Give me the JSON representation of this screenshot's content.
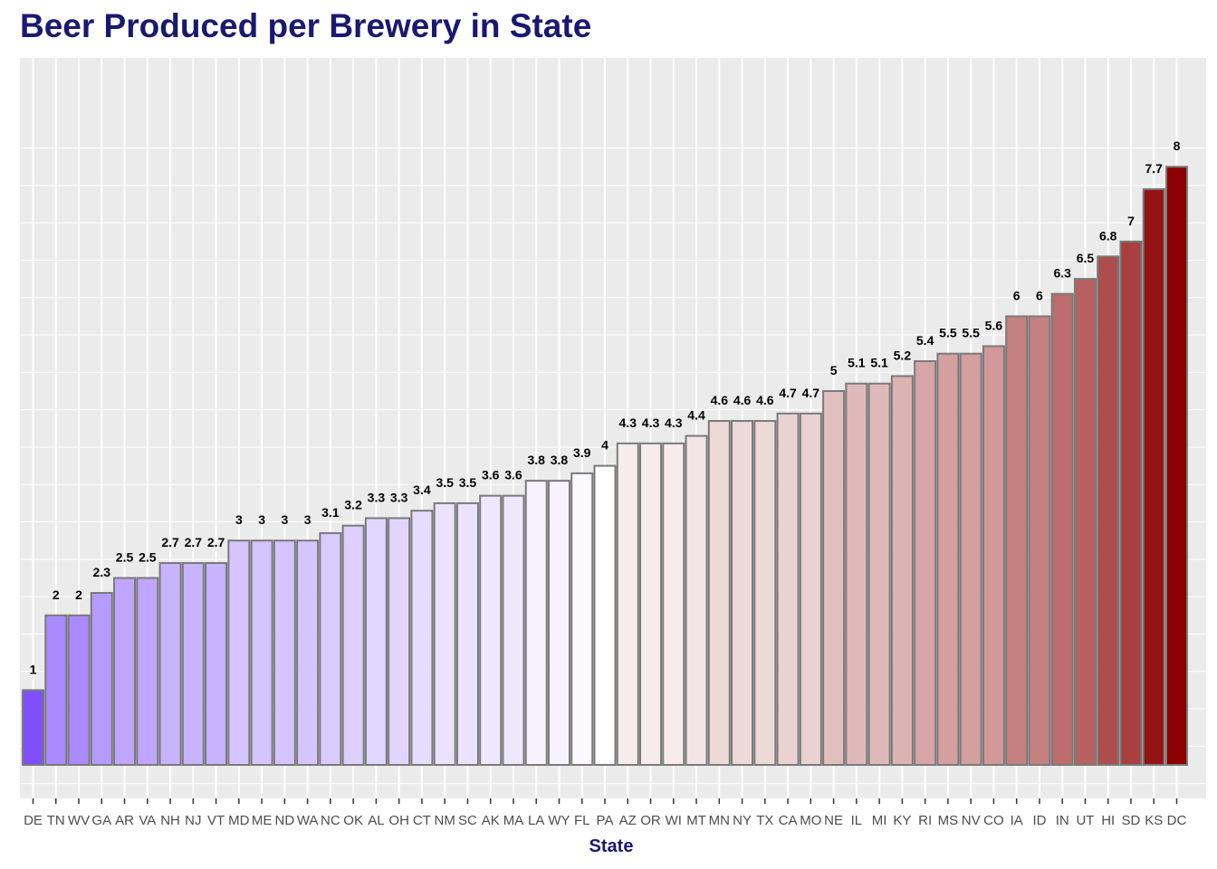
{
  "chart_data": {
    "type": "bar",
    "title": "Beer Produced per Brewery in State",
    "xlabel": "State",
    "ylabel": "",
    "ylim": [
      0,
      8.4
    ],
    "grid": true,
    "categories": [
      "DE",
      "TN",
      "WV",
      "GA",
      "AR",
      "VA",
      "NH",
      "NJ",
      "VT",
      "MD",
      "ME",
      "ND",
      "WA",
      "NC",
      "OK",
      "AL",
      "OH",
      "CT",
      "NM",
      "SC",
      "AK",
      "MA",
      "LA",
      "WY",
      "FL",
      "PA",
      "AZ",
      "OR",
      "WI",
      "MT",
      "MN",
      "NY",
      "TX",
      "CA",
      "MO",
      "NE",
      "IL",
      "MI",
      "KY",
      "RI",
      "MS",
      "NV",
      "CO",
      "IA",
      "ID",
      "IN",
      "UT",
      "HI",
      "SD",
      "KS",
      "DC"
    ],
    "values": [
      1,
      2,
      2,
      2.3,
      2.5,
      2.5,
      2.7,
      2.7,
      2.7,
      3,
      3,
      3,
      3,
      3.1,
      3.2,
      3.3,
      3.3,
      3.4,
      3.5,
      3.5,
      3.6,
      3.6,
      3.8,
      3.8,
      3.9,
      4,
      4.3,
      4.3,
      4.3,
      4.4,
      4.6,
      4.6,
      4.6,
      4.7,
      4.7,
      5,
      5.1,
      5.1,
      5.2,
      5.4,
      5.5,
      5.5,
      5.6,
      6,
      6,
      6.3,
      6.5,
      6.8,
      7,
      7.7,
      8
    ],
    "value_labels": [
      "1",
      "2",
      "2",
      "2.3",
      "2.5",
      "2.5",
      "2.7",
      "2.7",
      "2.7",
      "3",
      "3",
      "3",
      "3",
      "3.1",
      "3.2",
      "3.3",
      "3.3",
      "3.4",
      "3.5",
      "3.5",
      "3.6",
      "3.6",
      "3.8",
      "3.8",
      "3.9",
      "4",
      "4.3",
      "4.3",
      "4.3",
      "4.4",
      "4.6",
      "4.6",
      "4.6",
      "4.7",
      "4.7",
      "5",
      "5.1",
      "5.1",
      "5.2",
      "5.4",
      "5.5",
      "5.5",
      "5.6",
      "6",
      "6",
      "6.3",
      "6.5",
      "6.8",
      "7",
      "7.7",
      "8"
    ],
    "color_low": "#7f4fff",
    "color_mid": "#ffffff",
    "color_high": "#8b0000",
    "panel_background": "#ebebeb",
    "gridline_color": "#ffffff",
    "bar_outline": "#7a7a7a",
    "title_color": "#191970",
    "y_tick_labels_shown": false
  }
}
